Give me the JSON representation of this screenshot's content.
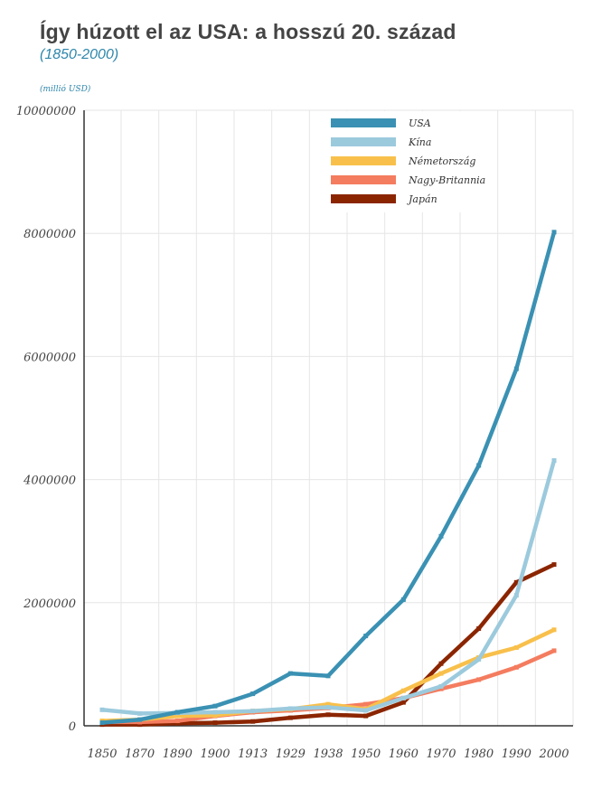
{
  "header": {
    "title": "Így húzott el az USA: a hosszú 20. század",
    "subtitle": "(1850-2000)",
    "unit": "(millió USD)"
  },
  "chart_data": {
    "type": "line",
    "title": "Így húzott el az USA: a hosszú 20. század",
    "subtitle": "(1850-2000)",
    "ylabel": "(millió USD)",
    "xlabel": "",
    "categories": [
      "1850",
      "1870",
      "1890",
      "1900",
      "1913",
      "1929",
      "1938",
      "1950",
      "1960",
      "1970",
      "1980",
      "1990",
      "2000"
    ],
    "ylim": [
      0,
      10000000
    ],
    "yticks": [
      0,
      2000000,
      4000000,
      6000000,
      8000000,
      10000000
    ],
    "ytick_labels": [
      "0",
      "2000000",
      "4000000",
      "6000000",
      "8000000",
      "10000000"
    ],
    "grid": true,
    "legend_position": "top-right",
    "series": [
      {
        "name": "USA",
        "color": "#3a91b3",
        "values": [
          50000,
          100000,
          220000,
          320000,
          520000,
          850000,
          810000,
          1460000,
          2050000,
          3080000,
          4230000,
          5800000,
          8020000
        ]
      },
      {
        "name": "Kína",
        "color": "#9ccadd",
        "values": [
          260000,
          200000,
          210000,
          220000,
          240000,
          280000,
          300000,
          250000,
          450000,
          640000,
          1080000,
          2120000,
          4310000
        ]
      },
      {
        "name": "Németország",
        "color": "#f8c04b",
        "values": [
          80000,
          100000,
          160000,
          170000,
          240000,
          270000,
          350000,
          270000,
          570000,
          850000,
          1110000,
          1270000,
          1560000
        ]
      },
      {
        "name": "Nagy-Britannia",
        "color": "#f47c5f",
        "values": [
          60000,
          60000,
          80000,
          160000,
          220000,
          250000,
          290000,
          350000,
          450000,
          600000,
          750000,
          950000,
          1220000
        ]
      },
      {
        "name": "Japán",
        "color": "#8b2500",
        "values": [
          20000,
          20000,
          40000,
          50000,
          70000,
          130000,
          180000,
          160000,
          380000,
          1010000,
          1580000,
          2330000,
          2620000
        ]
      }
    ]
  }
}
